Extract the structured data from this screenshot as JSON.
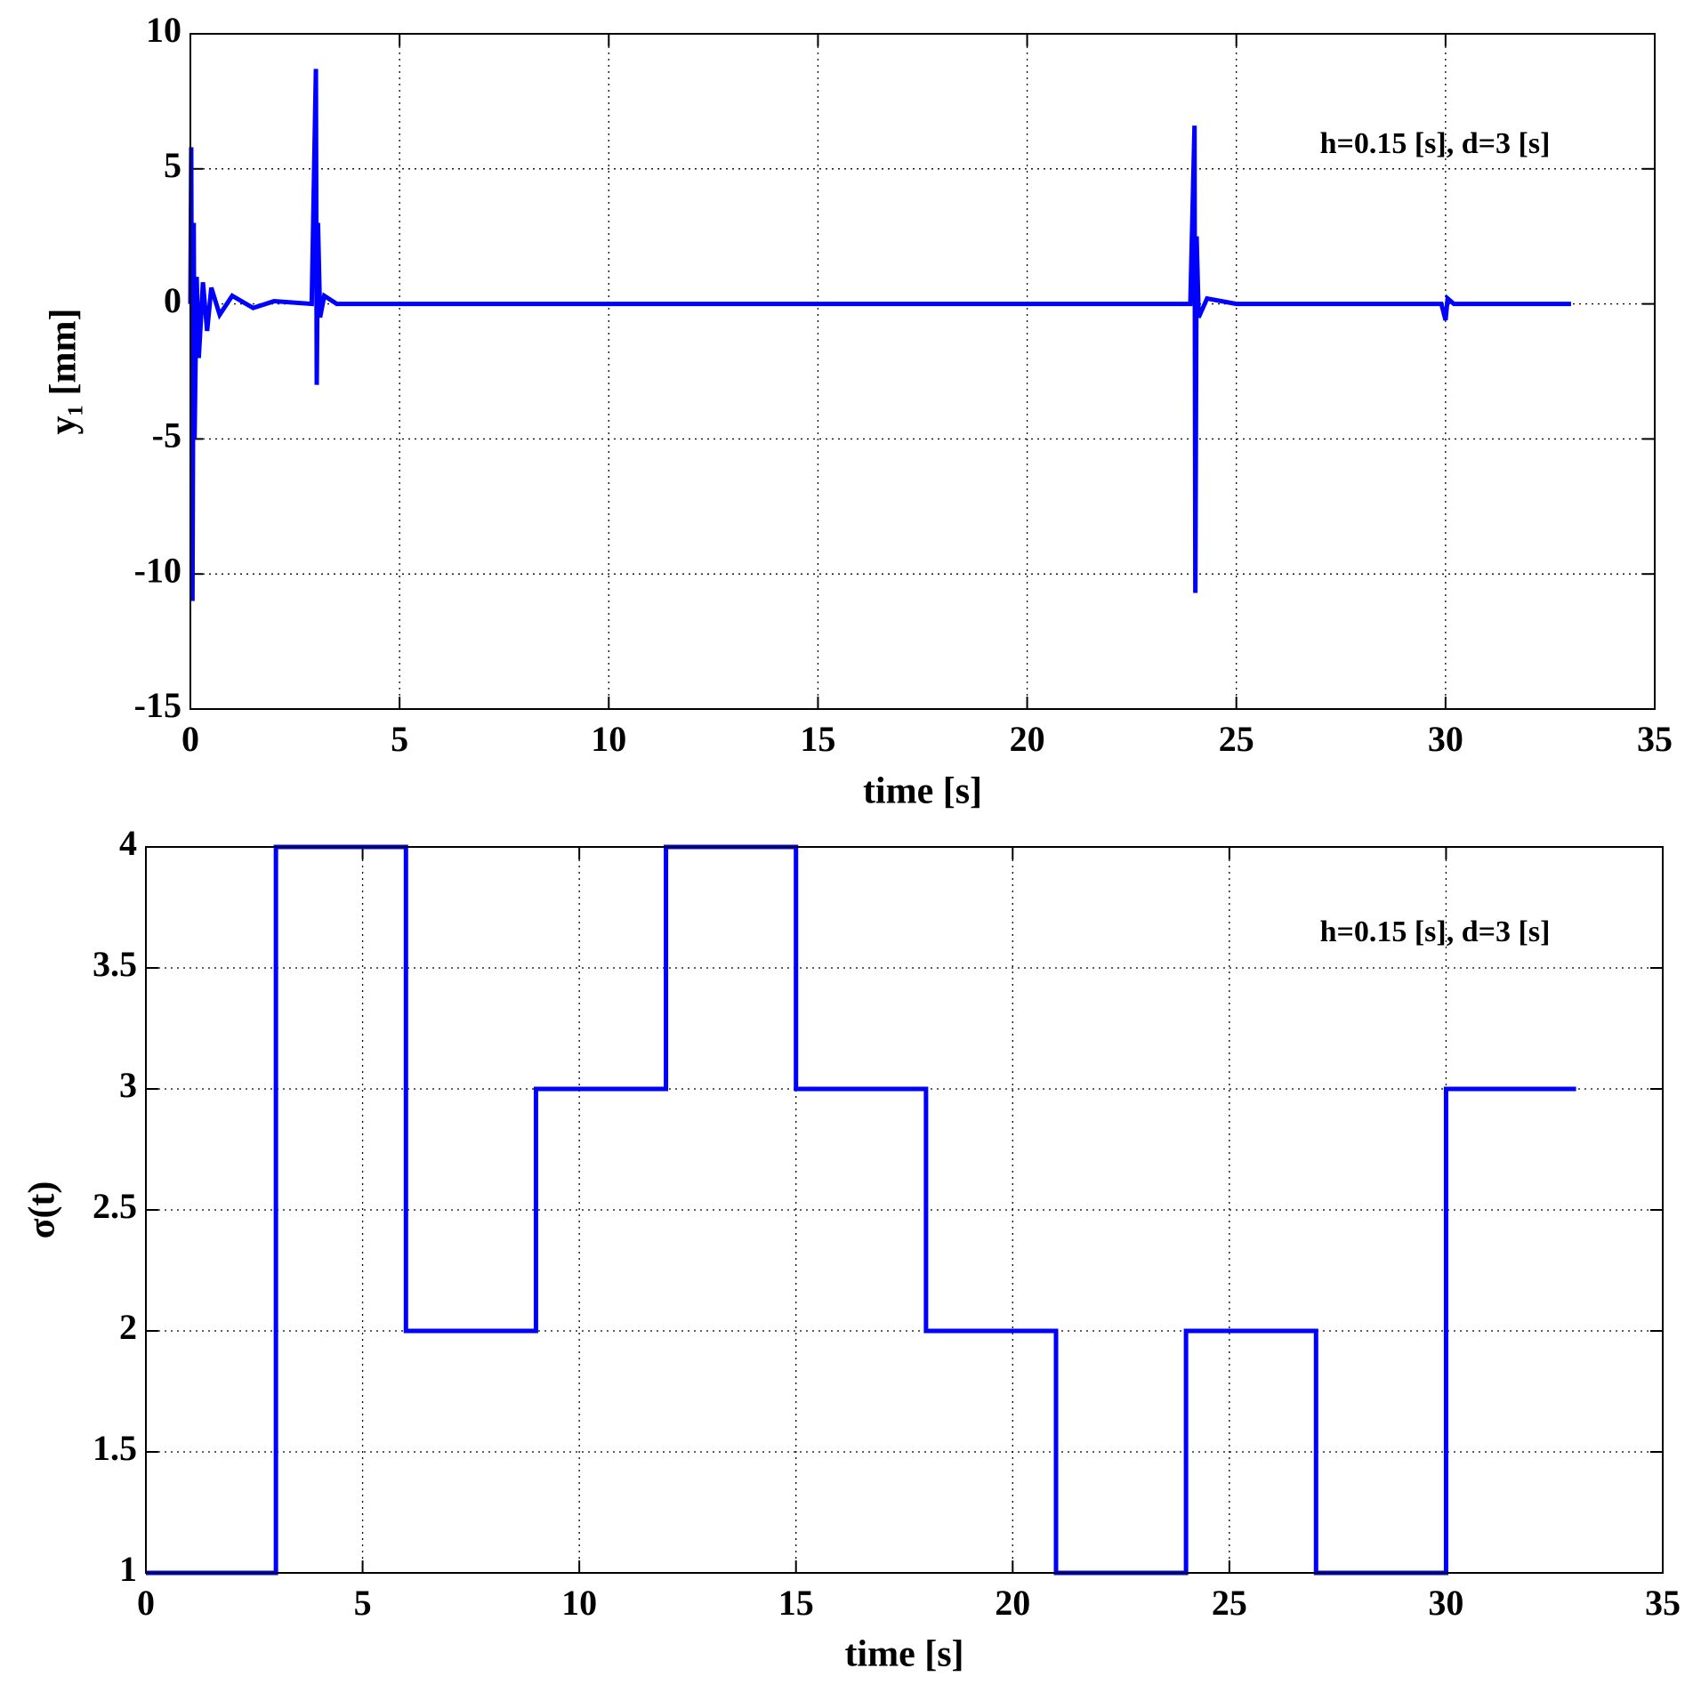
{
  "chart_data": [
    {
      "type": "line",
      "xlabel": "time [s]",
      "ylabel": "y₁ [mm]",
      "annotation": "h=0.15 [s], d=3 [s]",
      "xlim": [
        0,
        35
      ],
      "xticks": [
        0,
        5,
        10,
        15,
        20,
        25,
        30,
        35
      ],
      "ylim": [
        -15,
        10
      ],
      "yticks": [
        -15,
        -10,
        -5,
        0,
        5,
        10
      ],
      "grid": true,
      "x": [
        0,
        0.02,
        0.05,
        0.08,
        0.1,
        0.15,
        0.2,
        0.3,
        0.4,
        0.5,
        0.7,
        1,
        1.5,
        2,
        2.9,
        3.0,
        3.02,
        3.05,
        3.1,
        3.2,
        3.5,
        5,
        10,
        15,
        20,
        23.9,
        24.0,
        24.02,
        24.05,
        24.1,
        24.3,
        25,
        29.9,
        30.0,
        30.05,
        30.2,
        33
      ],
      "series": [
        {
          "color": "#0000ff",
          "values": [
            0,
            5.8,
            -11,
            3,
            -5,
            1,
            -2,
            0.8,
            -1,
            0.6,
            -0.4,
            0.3,
            -0.15,
            0.1,
            0,
            8.7,
            -3,
            3,
            -0.5,
            0.3,
            0,
            0,
            0,
            0,
            0,
            0,
            6.6,
            -10.7,
            2.5,
            -0.5,
            0.2,
            0,
            0,
            -0.6,
            0.2,
            0,
            0
          ]
        }
      ]
    },
    {
      "type": "line",
      "xlabel": "time [s]",
      "ylabel": "σ(t)",
      "annotation": "h=0.15 [s], d=3 [s]",
      "xlim": [
        0,
        35
      ],
      "xticks": [
        0,
        5,
        10,
        15,
        20,
        25,
        30,
        35
      ],
      "ylim": [
        1,
        4
      ],
      "yticks": [
        1,
        1.5,
        2,
        2.5,
        3,
        3.5,
        4
      ],
      "grid": true,
      "x": [
        0,
        3,
        3,
        6,
        6,
        9,
        9,
        12,
        12,
        15,
        15,
        18,
        18,
        21,
        21,
        24,
        24,
        27,
        27,
        30,
        30,
        33
      ],
      "series": [
        {
          "color": "#0000ff",
          "values": [
            1,
            1,
            4,
            4,
            2,
            2,
            3,
            3,
            4,
            4,
            3,
            3,
            2,
            2,
            1,
            1,
            2,
            2,
            1,
            1,
            3,
            3
          ]
        }
      ]
    }
  ]
}
